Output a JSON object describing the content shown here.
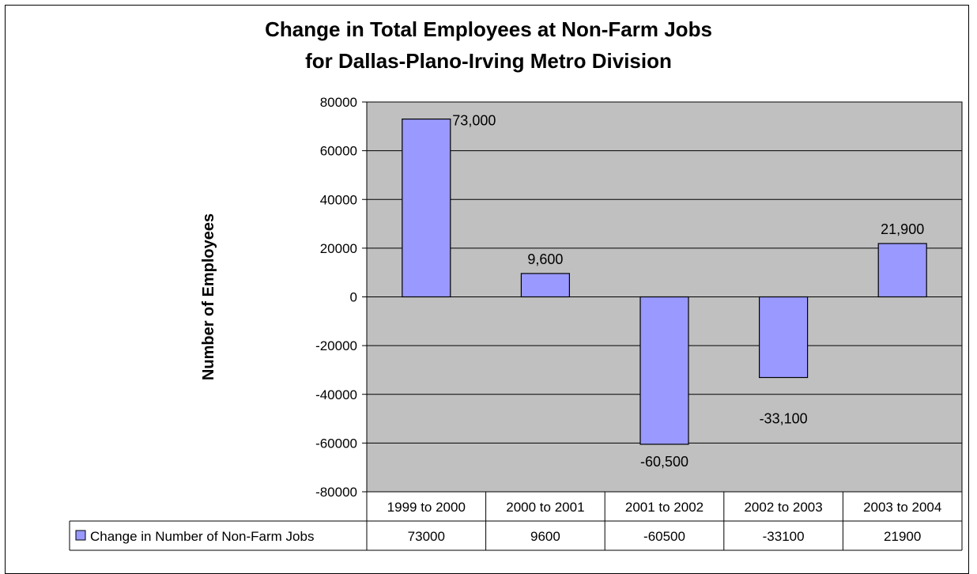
{
  "chart_data": {
    "type": "bar",
    "title_lines": [
      "Change in Total Employees at Non-Farm Jobs",
      "for Dallas-Plano-Irving Metro Division"
    ],
    "xlabel": "",
    "ylabel": "Number of Employees",
    "categories": [
      "1999 to 2000",
      "2000 to 2001",
      "2001 to 2002",
      "2002 to 2003",
      "2003 to 2004"
    ],
    "series": [
      {
        "name": "Change in Number of Non-Farm Jobs",
        "values": [
          73000,
          9600,
          -60500,
          -33100,
          21900
        ],
        "data_labels": [
          "73,000",
          "9,600",
          "-60,500",
          "-33,100",
          "21,900"
        ],
        "table_values": [
          "73000",
          "9600",
          "-60500",
          "-33100",
          "21900"
        ],
        "color": "#9999ff"
      }
    ],
    "ylim": [
      -80000,
      80000
    ],
    "yticks": [
      80000,
      60000,
      40000,
      20000,
      0,
      -20000,
      -40000,
      -60000,
      -80000
    ],
    "ytick_labels": [
      "80000",
      "60000",
      "40000",
      "20000",
      "0",
      "-20000",
      "-40000",
      "-60000",
      "-80000"
    ],
    "plot_background": "#c0c0c0",
    "grid": true,
    "legend": "data-table"
  }
}
